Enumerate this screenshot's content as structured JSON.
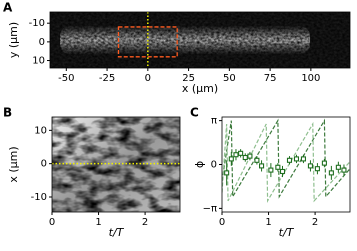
{
  "chart_data": [
    {
      "type": "image",
      "panel": "A",
      "xlabel": "x (μm)",
      "ylabel": "y (μm)",
      "xlim": [
        -60,
        124
      ],
      "xticks": [
        -50,
        -25,
        0,
        25,
        50,
        75,
        100
      ],
      "ylim": [
        -16,
        14
      ],
      "yticks": [
        -10,
        0,
        10
      ],
      "y_inverted": true,
      "roi": {
        "x": [
          -18,
          18
        ],
        "y": [
          -8,
          8
        ],
        "color": "#ff5a1f"
      },
      "marker_x": 0,
      "marker_color": "#f0f000"
    },
    {
      "type": "image",
      "panel": "B",
      "xlabel": "t/T",
      "ylabel": "x (μm)",
      "xlim": [
        0,
        2.75
      ],
      "xticks": [
        0,
        1,
        2
      ],
      "ylim": [
        -14.5,
        14
      ],
      "yticks": [
        -10,
        0,
        10
      ],
      "marker_y": 0,
      "marker_color": "#f0f000"
    },
    {
      "type": "line",
      "panel": "C",
      "xlabel": "t/T",
      "ylabel": "ϕ",
      "xlim": [
        0,
        2.75
      ],
      "xticks": [
        0,
        1,
        2
      ],
      "ylim": [
        -3.4,
        3.4
      ],
      "yticks": [
        {
          "value": 3.14159,
          "label": "π"
        },
        0,
        {
          "value": -3.14159,
          "label": "−π"
        }
      ],
      "series": [
        {
          "linestyle": "dashed",
          "color": "#3d7a3d",
          "x": [
            0,
            0.2,
            0.23,
            1.2,
            1.23,
            2.2,
            2.23,
            2.75
          ],
          "values": [
            -1.2,
            3.14,
            -2.3,
            3.14,
            -2.3,
            3.14,
            -2.3,
            -0.3
          ]
        },
        {
          "linestyle": "dashed",
          "color": "#8fbf8f",
          "x": [
            0,
            0.1,
            0.13,
            0.95,
            0.98,
            1.95,
            1.98,
            2.75
          ],
          "values": [
            -2,
            2.9,
            -2.6,
            2.9,
            -2.6,
            2.9,
            -2.6,
            0.2
          ]
        },
        {
          "linestyle": "markers",
          "color": "#1f6e1f",
          "x": [
            0.1,
            0.2,
            0.3,
            0.4,
            0.5,
            0.6,
            0.75,
            0.85,
            1.05,
            1.2,
            1.3,
            1.45,
            1.6,
            1.75,
            1.9,
            2.05,
            2.2,
            2.35,
            2.5,
            2.62
          ],
          "values": [
            -0.6,
            0.4,
            0.7,
            0.8,
            0.5,
            0.6,
            0.3,
            -0.1,
            -0.4,
            -0.2,
            -0.5,
            0.3,
            0.4,
            0.4,
            -0.1,
            -0.3,
            0.1,
            -0.6,
            -0.2,
            -0.4
          ],
          "errors": [
            0.9,
            0.5,
            0.4,
            0.3,
            0.3,
            0.3,
            0.3,
            0.4,
            0.5,
            0.3,
            0.4,
            0.3,
            0.3,
            0.3,
            0.4,
            0.4,
            0.3,
            0.5,
            0.4,
            0.4
          ]
        }
      ]
    }
  ]
}
